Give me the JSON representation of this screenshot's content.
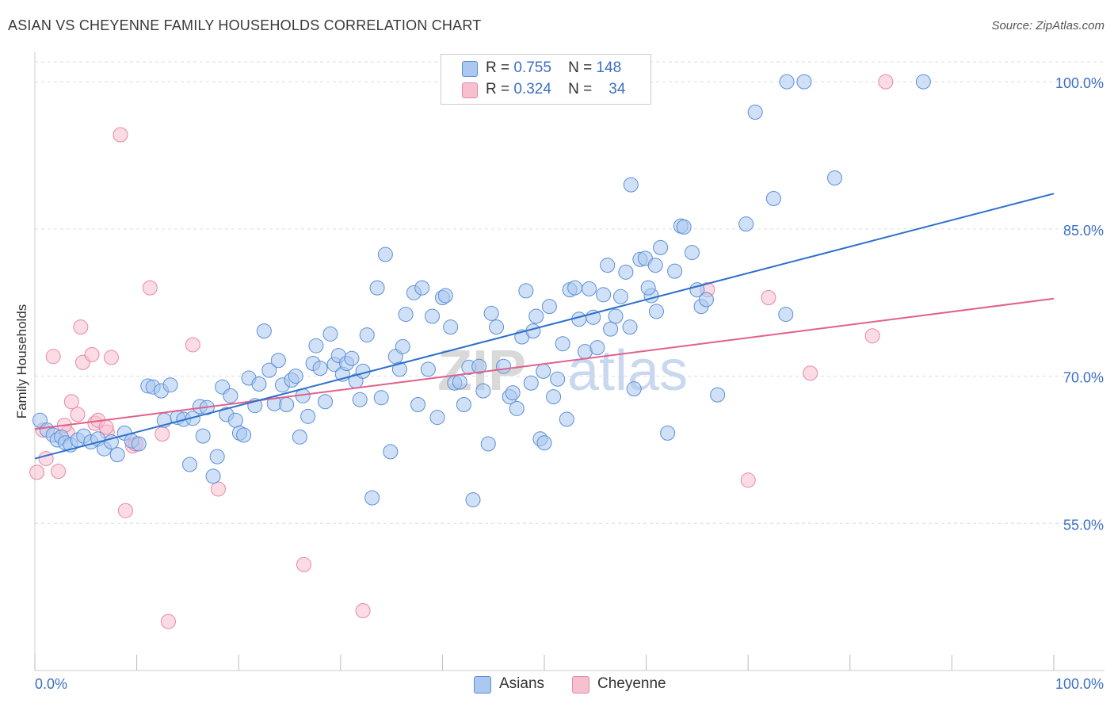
{
  "title": "ASIAN VS CHEYENNE FAMILY HOUSEHOLDS CORRELATION CHART",
  "source": "Source: ZipAtlas.com",
  "watermark": {
    "zip": "ZIP",
    "atlas": "atlas"
  },
  "colors": {
    "asians_fill": "#aac8f0",
    "asians_stroke": "#5b8fd6",
    "asians_line": "#2d6fcc",
    "cheyenne_fill": "#f7c0cf",
    "cheyenne_stroke": "#e887a6",
    "cheyenne_line": "#e0608c",
    "tick_text": "#3d6fc4",
    "grid": "#dddddd"
  },
  "legend": {
    "asians": {
      "r_label": "R =",
      "r_value": "0.755",
      "n_label": "N =",
      "n_value": "148"
    },
    "cheyenne": {
      "r_label": "R =",
      "r_value": "0.324",
      "n_label": "N =",
      "n_value": "34"
    }
  },
  "bottom_legend": {
    "asians": "Asians",
    "cheyenne": "Cheyenne"
  },
  "chart_data": {
    "type": "scatter",
    "title": "ASIAN VS CHEYENNE FAMILY HOUSEHOLDS CORRELATION CHART",
    "xlabel": "",
    "ylabel": "Family Households",
    "xlim": [
      0,
      100
    ],
    "ylim": [
      40,
      103
    ],
    "x_tick_labels": [
      "0.0%",
      "100.0%"
    ],
    "y_tick_labels": [
      "55.0%",
      "70.0%",
      "85.0%",
      "100.0%"
    ],
    "y_ticks": [
      55,
      70,
      85,
      100
    ],
    "grid": true,
    "legend_position": "top-center",
    "series": [
      {
        "name": "Asians",
        "r": 0.755,
        "n": 148,
        "trend": {
          "x": [
            0,
            100
          ],
          "y": [
            61.6,
            88.6
          ]
        },
        "points": [
          [
            0.5,
            65.5
          ],
          [
            1.2,
            64.5
          ],
          [
            1.8,
            64.0
          ],
          [
            2.2,
            63.5
          ],
          [
            2.6,
            63.8
          ],
          [
            3.0,
            63.2
          ],
          [
            3.5,
            63.0
          ],
          [
            4.2,
            63.5
          ],
          [
            4.8,
            63.9
          ],
          [
            5.5,
            63.3
          ],
          [
            6.2,
            63.6
          ],
          [
            6.8,
            62.6
          ],
          [
            7.5,
            63.3
          ],
          [
            8.1,
            62.0
          ],
          [
            8.8,
            64.2
          ],
          [
            9.5,
            63.4
          ],
          [
            10.2,
            63.1
          ],
          [
            11.1,
            69.0
          ],
          [
            11.6,
            68.9
          ],
          [
            12.4,
            68.5
          ],
          [
            12.7,
            65.5
          ],
          [
            13.3,
            69.1
          ],
          [
            14.0,
            65.8
          ],
          [
            14.6,
            65.6
          ],
          [
            15.2,
            61.0
          ],
          [
            15.5,
            65.7
          ],
          [
            16.2,
            66.9
          ],
          [
            16.5,
            63.9
          ],
          [
            16.9,
            66.8
          ],
          [
            17.5,
            59.8
          ],
          [
            17.9,
            61.8
          ],
          [
            18.4,
            68.9
          ],
          [
            18.8,
            66.1
          ],
          [
            19.2,
            68.0
          ],
          [
            19.7,
            65.5
          ],
          [
            20.1,
            64.2
          ],
          [
            20.5,
            64.0
          ],
          [
            21.0,
            69.8
          ],
          [
            21.6,
            67.0
          ],
          [
            22.0,
            69.2
          ],
          [
            22.5,
            74.6
          ],
          [
            23.0,
            70.6
          ],
          [
            23.5,
            67.2
          ],
          [
            23.9,
            71.6
          ],
          [
            24.3,
            69.1
          ],
          [
            24.7,
            67.1
          ],
          [
            25.2,
            69.6
          ],
          [
            25.6,
            70.0
          ],
          [
            26.0,
            63.8
          ],
          [
            26.3,
            68.0
          ],
          [
            26.8,
            65.9
          ],
          [
            27.3,
            71.3
          ],
          [
            27.6,
            73.1
          ],
          [
            28.0,
            70.8
          ],
          [
            28.5,
            67.4
          ],
          [
            29.0,
            74.3
          ],
          [
            29.4,
            71.2
          ],
          [
            29.8,
            72.1
          ],
          [
            30.2,
            70.2
          ],
          [
            30.6,
            71.3
          ],
          [
            31.1,
            71.8
          ],
          [
            31.5,
            69.5
          ],
          [
            31.9,
            67.6
          ],
          [
            32.2,
            70.5
          ],
          [
            32.6,
            74.2
          ],
          [
            33.1,
            57.6
          ],
          [
            33.6,
            79.0
          ],
          [
            34.0,
            67.8
          ],
          [
            34.4,
            82.4
          ],
          [
            34.9,
            62.3
          ],
          [
            35.4,
            72.0
          ],
          [
            35.8,
            70.7
          ],
          [
            36.1,
            73.0
          ],
          [
            37.2,
            78.5
          ],
          [
            37.6,
            67.1
          ],
          [
            38.0,
            79.0
          ],
          [
            38.6,
            70.7
          ],
          [
            39.0,
            76.1
          ],
          [
            39.5,
            65.8
          ],
          [
            40.0,
            78.0
          ],
          [
            40.3,
            78.2
          ],
          [
            40.8,
            75.0
          ],
          [
            41.2,
            69.3
          ],
          [
            41.7,
            69.4
          ],
          [
            42.1,
            67.1
          ],
          [
            42.6,
            70.9
          ],
          [
            43.0,
            57.4
          ],
          [
            43.6,
            71.0
          ],
          [
            44.0,
            68.5
          ],
          [
            44.5,
            63.1
          ],
          [
            44.8,
            76.4
          ],
          [
            45.3,
            75.0
          ],
          [
            46.0,
            71.0
          ],
          [
            46.6,
            67.9
          ],
          [
            46.9,
            68.3
          ],
          [
            47.3,
            66.7
          ],
          [
            47.8,
            74.0
          ],
          [
            48.2,
            78.7
          ],
          [
            48.7,
            69.3
          ],
          [
            49.2,
            76.1
          ],
          [
            49.6,
            63.6
          ],
          [
            49.9,
            70.5
          ],
          [
            50.5,
            77.1
          ],
          [
            50.9,
            67.9
          ],
          [
            51.3,
            69.7
          ],
          [
            51.8,
            73.3
          ],
          [
            52.5,
            78.8
          ],
          [
            53.0,
            79.0
          ],
          [
            53.4,
            75.8
          ],
          [
            54.0,
            72.5
          ],
          [
            54.4,
            78.9
          ],
          [
            54.8,
            76.0
          ],
          [
            55.2,
            72.9
          ],
          [
            55.8,
            78.3
          ],
          [
            56.2,
            81.3
          ],
          [
            56.5,
            74.8
          ],
          [
            57.0,
            76.1
          ],
          [
            57.5,
            78.1
          ],
          [
            58.0,
            80.6
          ],
          [
            58.4,
            75.0
          ],
          [
            58.8,
            68.7
          ],
          [
            59.4,
            81.9
          ],
          [
            59.9,
            82.0
          ],
          [
            60.5,
            78.2
          ],
          [
            60.9,
            81.3
          ],
          [
            61.4,
            83.1
          ],
          [
            62.1,
            64.2
          ],
          [
            62.8,
            80.7
          ],
          [
            63.4,
            85.3
          ],
          [
            63.7,
            85.2
          ],
          [
            64.5,
            82.6
          ],
          [
            65.0,
            78.8
          ],
          [
            65.4,
            77.1
          ],
          [
            65.9,
            77.8
          ],
          [
            67.0,
            68.1
          ],
          [
            69.8,
            85.5
          ],
          [
            70.7,
            96.9
          ],
          [
            72.5,
            88.1
          ],
          [
            73.7,
            76.3
          ],
          [
            73.8,
            100.0
          ],
          [
            75.5,
            100.0
          ],
          [
            78.5,
            90.2
          ],
          [
            87.2,
            100.0
          ],
          [
            58.5,
            89.5
          ],
          [
            60.2,
            79.0
          ],
          [
            61.0,
            76.6
          ],
          [
            48.9,
            74.6
          ],
          [
            52.2,
            65.6
          ],
          [
            50.0,
            63.2
          ],
          [
            36.4,
            76.3
          ]
        ]
      },
      {
        "name": "Cheyenne",
        "r": 0.324,
        "n": 34,
        "trend": {
          "x": [
            0,
            100
          ],
          "y": [
            64.6,
            77.9
          ]
        },
        "points": [
          [
            0.2,
            60.2
          ],
          [
            0.8,
            64.5
          ],
          [
            1.1,
            61.6
          ],
          [
            1.8,
            72.0
          ],
          [
            2.3,
            60.3
          ],
          [
            3.2,
            64.2
          ],
          [
            3.6,
            67.4
          ],
          [
            4.2,
            66.1
          ],
          [
            4.5,
            75.0
          ],
          [
            4.7,
            71.4
          ],
          [
            5.6,
            72.2
          ],
          [
            5.9,
            65.2
          ],
          [
            6.2,
            65.5
          ],
          [
            7.1,
            64.3
          ],
          [
            7.5,
            71.9
          ],
          [
            8.4,
            94.6
          ],
          [
            8.9,
            56.3
          ],
          [
            9.6,
            62.9
          ],
          [
            9.9,
            63.1
          ],
          [
            11.3,
            79.0
          ],
          [
            12.5,
            64.1
          ],
          [
            13.1,
            45.0
          ],
          [
            15.5,
            73.2
          ],
          [
            18.0,
            58.5
          ],
          [
            26.4,
            50.8
          ],
          [
            32.2,
            46.1
          ],
          [
            66.0,
            78.8
          ],
          [
            70.0,
            59.4
          ],
          [
            72.0,
            78.0
          ],
          [
            76.1,
            70.3
          ],
          [
            82.2,
            74.1
          ],
          [
            83.5,
            100.0
          ],
          [
            2.9,
            65.0
          ],
          [
            7.0,
            64.8
          ]
        ]
      }
    ]
  }
}
